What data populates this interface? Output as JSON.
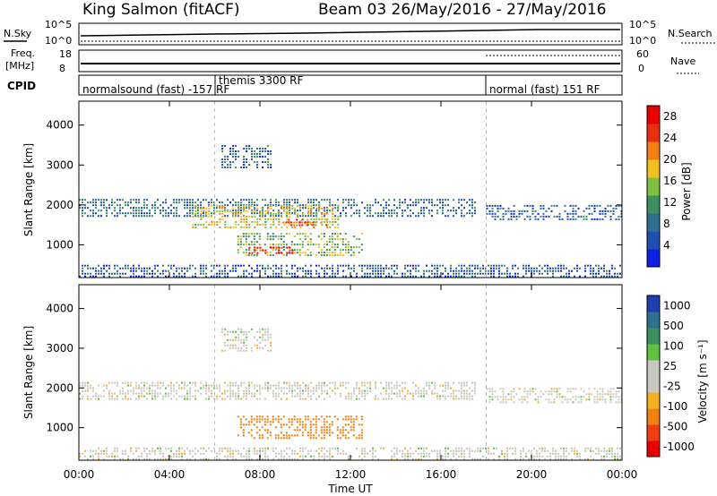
{
  "header": {
    "station": "King Salmon (fitACF)",
    "beam_dates": "Beam 03 26/May/2016 - 27/May/2016"
  },
  "top_panels": {
    "nsky_label": "N.Sky",
    "nsky_ticks": [
      "10^5",
      "10^0"
    ],
    "nsearch_label": "N.Search",
    "nsearch_ticks": [
      "10^5",
      "10^0"
    ],
    "freq_label_1": "Freq.",
    "freq_label_2": "[MHz]",
    "freq_ticks": [
      "18",
      "8"
    ],
    "nave_label": "Nave",
    "nave_ticks": [
      "60",
      "0"
    ],
    "cpid_label": "CPID",
    "cpid_segments": [
      {
        "text": "normalsound (fast) -157 RF",
        "start_hour": 0
      },
      {
        "text": "themis 3300 RF",
        "start_hour": 6
      },
      {
        "text": "normal (fast) 151 RF",
        "start_hour": 18
      }
    ]
  },
  "colors": {
    "power_scale": [
      "#0b1fe6",
      "#1f4fb0",
      "#2f6f8f",
      "#3d8f5f",
      "#7fbf3f",
      "#f0c020",
      "#f08010",
      "#e83010",
      "#e80000"
    ],
    "velocity_scale": [
      "#e80000",
      "#f04010",
      "#f08010",
      "#f0b020",
      "#c8c8c0",
      "#c8c8c0",
      "#60c040",
      "#3d8f5f",
      "#2f6f8f",
      "#1f3fb0"
    ]
  },
  "chart_data": [
    {
      "type": "heatmap",
      "name": "power",
      "ylabel": "Slant Range [km]",
      "xlabel": "",
      "x_ticks": [
        "00:00",
        "04:00",
        "08:00",
        "12:00",
        "16:00",
        "20:00",
        "00:00"
      ],
      "xlim_hours": [
        0,
        24
      ],
      "ylim_km": [
        180,
        4600
      ],
      "y_ticks": [
        1000,
        2000,
        3000,
        4000
      ],
      "colorbar": {
        "label": "Power [dB]",
        "ticks": [
          "4",
          "8",
          "12",
          "16",
          "20",
          "24",
          "28"
        ],
        "range": [
          0,
          30
        ]
      },
      "echo_regions": [
        {
          "x": [
            0,
            17.5
          ],
          "y": [
            1700,
            2150
          ],
          "level": 8
        },
        {
          "x": [
            5,
            11.5
          ],
          "y": [
            1450,
            2000
          ],
          "level": 18
        },
        {
          "x": [
            9,
            11
          ],
          "y": [
            1450,
            1650
          ],
          "level": 24
        },
        {
          "x": [
            7,
            12.5
          ],
          "y": [
            750,
            1300
          ],
          "level": 14
        },
        {
          "x": [
            7.5,
            9.5
          ],
          "y": [
            750,
            950
          ],
          "level": 28
        },
        {
          "x": [
            6.3,
            8.5
          ],
          "y": [
            2900,
            3500
          ],
          "level": 7
        },
        {
          "x": [
            18,
            24
          ],
          "y": [
            1600,
            2000
          ],
          "level": 6
        },
        {
          "x": [
            0,
            24
          ],
          "y": [
            200,
            500
          ],
          "level": 6
        }
      ],
      "boundaries_hours": [
        6,
        18
      ]
    },
    {
      "type": "heatmap",
      "name": "velocity",
      "ylabel": "Slant Range [km]",
      "xlabel": "Time UT",
      "x_ticks": [
        "00:00",
        "04:00",
        "08:00",
        "12:00",
        "16:00",
        "20:00",
        "00:00"
      ],
      "xlim_hours": [
        0,
        24
      ],
      "ylim_km": [
        180,
        4600
      ],
      "y_ticks": [
        1000,
        2000,
        3000,
        4000
      ],
      "colorbar": {
        "label": "Velocity [m s⁻¹]",
        "ticks": [
          "1000",
          "500",
          "100",
          "25",
          "-25",
          "-100",
          "-500",
          "-1000"
        ]
      },
      "echo_regions": [
        {
          "x": [
            0,
            17.5
          ],
          "y": [
            1700,
            2150
          ],
          "level": 0
        },
        {
          "x": [
            7,
            12.5
          ],
          "y": [
            750,
            1300
          ],
          "level": -150
        },
        {
          "x": [
            6.3,
            8.5
          ],
          "y": [
            2900,
            3500
          ],
          "level": 0
        },
        {
          "x": [
            18,
            24
          ],
          "y": [
            1600,
            2000
          ],
          "level": 0
        },
        {
          "x": [
            0,
            24
          ],
          "y": [
            200,
            500
          ],
          "level": 0
        }
      ],
      "boundaries_hours": [
        6,
        18
      ]
    }
  ]
}
